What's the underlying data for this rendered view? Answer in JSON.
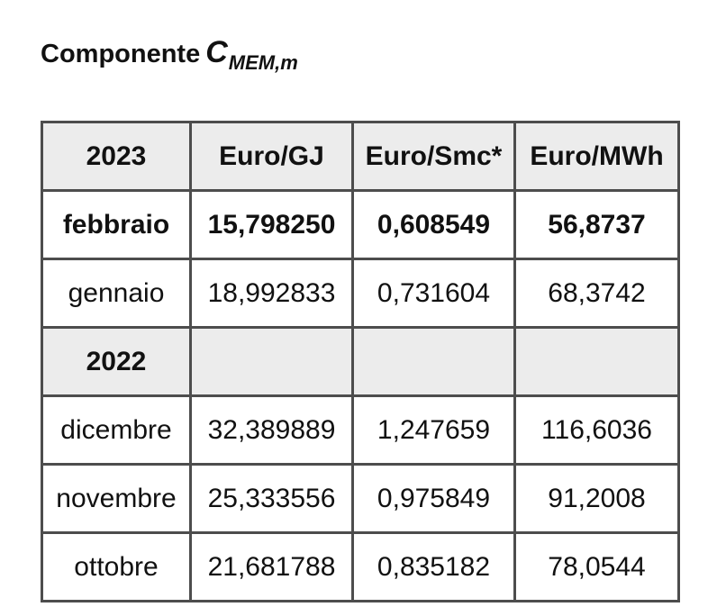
{
  "title": {
    "prefix": "Componente",
    "symbol": "C",
    "subscript": "MEM,m"
  },
  "table": {
    "header": {
      "year": "2023",
      "unit1": "Euro/GJ",
      "unit2": "Euro/Smc*",
      "unit3": "Euro/MWh"
    },
    "rows": [
      {
        "label": "febbraio",
        "v1": "15,798250",
        "v2": "0,608549",
        "v3": "56,8737"
      },
      {
        "label": "gennaio",
        "v1": "18,992833",
        "v2": "0,731604",
        "v3": "68,3742"
      },
      {
        "label": "2022",
        "v1": "",
        "v2": "",
        "v3": ""
      },
      {
        "label": "dicembre",
        "v1": "32,389889",
        "v2": "1,247659",
        "v3": "116,6036"
      },
      {
        "label": "novembre",
        "v1": "25,333556",
        "v2": "0,975849",
        "v3": "91,2008"
      },
      {
        "label": "ottobre",
        "v1": "21,681788",
        "v2": "0,835182",
        "v3": "78,0544"
      }
    ],
    "colors": {
      "border": "#4d4d4d",
      "header_bg": "#ececec",
      "text": "#111111",
      "row_bg": "#ffffff"
    }
  }
}
